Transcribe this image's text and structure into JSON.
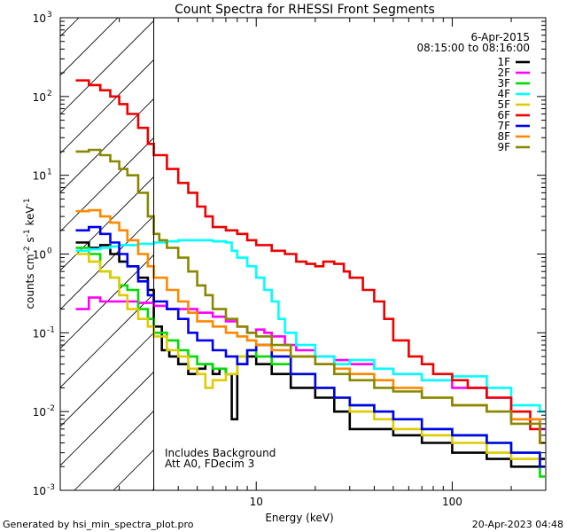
{
  "chart_data": {
    "type": "line",
    "title": "Count Spectra for RHESSI Front Segments",
    "xlabel": "Energy (keV)",
    "ylabel_parts": [
      "counts cm",
      "-2",
      " s",
      "-1",
      " keV",
      "-1"
    ],
    "xscale": "log",
    "yscale": "log",
    "xlim": [
      1,
      300
    ],
    "ylim": [
      0.001,
      1000
    ],
    "x_tick_labels": [
      {
        "value": 10,
        "label": "10"
      },
      {
        "value": 100,
        "label": "100"
      }
    ],
    "y_tick_labels": [
      {
        "value": 0.001,
        "base": "10",
        "exp": "-3"
      },
      {
        "value": 0.01,
        "base": "10",
        "exp": "-2"
      },
      {
        "value": 0.1,
        "base": "10",
        "exp": "-1"
      },
      {
        "value": 1,
        "base": "10",
        "exp": "0"
      },
      {
        "value": 10,
        "base": "10",
        "exp": "1"
      },
      {
        "value": 100,
        "base": "10",
        "exp": "2"
      },
      {
        "value": 1000,
        "base": "10",
        "exp": "3"
      }
    ],
    "shaded_region": {
      "x_min": 1,
      "x_max": 3,
      "pattern": "diagonal-hatch"
    },
    "date_label": "6-Apr-2015",
    "time_range_label": "08:15:00 to 08:16:00",
    "annotations": [
      "Includes Background",
      "Att A0, FDecim 3"
    ],
    "legend_position": "top-right",
    "series": [
      {
        "name": "1F",
        "color": "#000000",
        "points": [
          [
            1.2,
            1.4
          ],
          [
            1.4,
            1.2
          ],
          [
            1.6,
            1.3
          ],
          [
            1.8,
            1.0
          ],
          [
            2.0,
            0.8
          ],
          [
            2.2,
            0.7
          ],
          [
            2.5,
            0.5
          ],
          [
            2.8,
            0.35
          ],
          [
            3.0,
            0.12
          ],
          [
            3.3,
            0.06
          ],
          [
            3.6,
            0.05
          ],
          [
            4.0,
            0.04
          ],
          [
            4.5,
            0.03
          ],
          [
            5.0,
            0.035
          ],
          [
            5.5,
            0.04
          ],
          [
            6.0,
            0.03
          ],
          [
            6.5,
            0.035
          ],
          [
            7.0,
            0.03
          ],
          [
            7.5,
            0.008
          ],
          [
            8.0,
            0.04
          ],
          [
            9.0,
            0.05
          ],
          [
            10,
            0.04
          ],
          [
            12,
            0.03
          ],
          [
            15,
            0.02
          ],
          [
            20,
            0.015
          ],
          [
            25,
            0.01
          ],
          [
            30,
            0.006
          ],
          [
            40,
            0.006
          ],
          [
            50,
            0.005
          ],
          [
            70,
            0.004
          ],
          [
            100,
            0.003
          ],
          [
            150,
            0.0025
          ],
          [
            200,
            0.002
          ],
          [
            280,
            0.0025
          ]
        ]
      },
      {
        "name": "2F",
        "color": "#ff00ff",
        "points": [
          [
            1.2,
            0.2
          ],
          [
            1.4,
            0.28
          ],
          [
            1.6,
            0.25
          ],
          [
            2.0,
            0.25
          ],
          [
            2.5,
            0.24
          ],
          [
            3.0,
            0.22
          ],
          [
            3.5,
            0.2
          ],
          [
            4.0,
            0.2
          ],
          [
            5.0,
            0.18
          ],
          [
            6.0,
            0.16
          ],
          [
            7.0,
            0.14
          ],
          [
            8.0,
            0.12
          ],
          [
            9.0,
            0.1
          ],
          [
            10,
            0.11
          ],
          [
            11,
            0.1
          ],
          [
            12,
            0.09
          ],
          [
            14,
            0.07
          ],
          [
            16,
            0.06
          ],
          [
            20,
            0.05
          ],
          [
            25,
            0.045
          ],
          [
            30,
            0.04
          ],
          [
            40,
            0.035
          ],
          [
            50,
            0.03
          ],
          [
            70,
            0.025
          ],
          [
            100,
            0.02
          ],
          [
            150,
            0.015
          ],
          [
            200,
            0.008
          ],
          [
            280,
            0.006
          ]
        ]
      },
      {
        "name": "3F",
        "color": "#00dd00",
        "points": [
          [
            1.2,
            1.2
          ],
          [
            1.4,
            1.0
          ],
          [
            1.6,
            0.6
          ],
          [
            1.8,
            0.5
          ],
          [
            2.0,
            0.4
          ],
          [
            2.2,
            0.35
          ],
          [
            2.5,
            0.2
          ],
          [
            2.8,
            0.15
          ],
          [
            3.0,
            0.1
          ],
          [
            3.5,
            0.08
          ],
          [
            4.0,
            0.06
          ],
          [
            4.5,
            0.05
          ],
          [
            5.0,
            0.04
          ],
          [
            6.0,
            0.035
          ],
          [
            7.0,
            0.03
          ],
          [
            8.0,
            0.05
          ],
          [
            9.0,
            0.06
          ],
          [
            10,
            0.05
          ],
          [
            12,
            0.04
          ],
          [
            15,
            0.03
          ],
          [
            20,
            0.02
          ],
          [
            25,
            0.015
          ],
          [
            30,
            0.012
          ],
          [
            40,
            0.01
          ],
          [
            50,
            0.008
          ],
          [
            70,
            0.006
          ],
          [
            100,
            0.005
          ],
          [
            150,
            0.004
          ],
          [
            200,
            0.003
          ],
          [
            280,
            0.0015
          ]
        ]
      },
      {
        "name": "4F",
        "color": "#00ffff",
        "points": [
          [
            1.2,
            1.1
          ],
          [
            1.4,
            1.15
          ],
          [
            1.6,
            1.2
          ],
          [
            1.8,
            1.25
          ],
          [
            2.0,
            1.3
          ],
          [
            2.5,
            1.35
          ],
          [
            3.0,
            1.4
          ],
          [
            3.5,
            1.45
          ],
          [
            4.0,
            1.5
          ],
          [
            5.0,
            1.5
          ],
          [
            6.0,
            1.45
          ],
          [
            7.0,
            1.4
          ],
          [
            7.5,
            1.1
          ],
          [
            8.0,
            0.9
          ],
          [
            9.0,
            0.7
          ],
          [
            10,
            0.5
          ],
          [
            11,
            0.35
          ],
          [
            12,
            0.25
          ],
          [
            13,
            0.15
          ],
          [
            14,
            0.1
          ],
          [
            16,
            0.07
          ],
          [
            20,
            0.05
          ],
          [
            25,
            0.04
          ],
          [
            30,
            0.045
          ],
          [
            40,
            0.035
          ],
          [
            50,
            0.03
          ],
          [
            70,
            0.025
          ],
          [
            100,
            0.028
          ],
          [
            150,
            0.02
          ],
          [
            200,
            0.012
          ],
          [
            280,
            0.01
          ]
        ]
      },
      {
        "name": "5F",
        "color": "#ddcc00",
        "points": [
          [
            1.2,
            1.0
          ],
          [
            1.4,
            0.8
          ],
          [
            1.6,
            0.6
          ],
          [
            1.8,
            0.5
          ],
          [
            2.0,
            0.3
          ],
          [
            2.2,
            0.2
          ],
          [
            2.5,
            0.15
          ],
          [
            2.8,
            0.12
          ],
          [
            3.0,
            0.09
          ],
          [
            3.5,
            0.06
          ],
          [
            4.0,
            0.05
          ],
          [
            4.5,
            0.035
          ],
          [
            5.0,
            0.03
          ],
          [
            5.5,
            0.02
          ],
          [
            6.0,
            0.025
          ],
          [
            7.0,
            0.03
          ],
          [
            8.0,
            0.05
          ],
          [
            9.0,
            0.06
          ],
          [
            10,
            0.07
          ],
          [
            12,
            0.05
          ],
          [
            15,
            0.03
          ],
          [
            20,
            0.02
          ],
          [
            25,
            0.015
          ],
          [
            30,
            0.01
          ],
          [
            40,
            0.008
          ],
          [
            50,
            0.006
          ],
          [
            70,
            0.005
          ],
          [
            100,
            0.004
          ],
          [
            150,
            0.003
          ],
          [
            200,
            0.0025
          ],
          [
            280,
            0.002
          ]
        ]
      },
      {
        "name": "6F",
        "color": "#ee0000",
        "points": [
          [
            1.2,
            160
          ],
          [
            1.4,
            140
          ],
          [
            1.6,
            120
          ],
          [
            1.8,
            100
          ],
          [
            2.0,
            80
          ],
          [
            2.2,
            60
          ],
          [
            2.5,
            40
          ],
          [
            2.8,
            25
          ],
          [
            3.0,
            18
          ],
          [
            3.5,
            12
          ],
          [
            4.0,
            8
          ],
          [
            4.5,
            6
          ],
          [
            5.0,
            4
          ],
          [
            5.5,
            3
          ],
          [
            6.0,
            2.2
          ],
          [
            7.0,
            2.0
          ],
          [
            8.0,
            1.8
          ],
          [
            9.0,
            1.5
          ],
          [
            10,
            1.3
          ],
          [
            12,
            1.1
          ],
          [
            14,
            1.0
          ],
          [
            16,
            0.8
          ],
          [
            18,
            0.75
          ],
          [
            20,
            0.7
          ],
          [
            22,
            0.8
          ],
          [
            25,
            0.75
          ],
          [
            28,
            0.6
          ],
          [
            30,
            0.5
          ],
          [
            35,
            0.35
          ],
          [
            40,
            0.25
          ],
          [
            45,
            0.15
          ],
          [
            50,
            0.08
          ],
          [
            60,
            0.05
          ],
          [
            70,
            0.04
          ],
          [
            80,
            0.03
          ],
          [
            100,
            0.025
          ],
          [
            120,
            0.02
          ],
          [
            150,
            0.015
          ],
          [
            200,
            0.01
          ],
          [
            250,
            0.006
          ],
          [
            280,
            0.004
          ]
        ]
      },
      {
        "name": "7F",
        "color": "#0000ee",
        "points": [
          [
            1.2,
            2.0
          ],
          [
            1.4,
            2.2
          ],
          [
            1.6,
            1.8
          ],
          [
            1.8,
            1.4
          ],
          [
            2.0,
            1.0
          ],
          [
            2.2,
            0.7
          ],
          [
            2.5,
            0.45
          ],
          [
            2.8,
            0.3
          ],
          [
            3.0,
            0.25
          ],
          [
            3.5,
            0.2
          ],
          [
            4.0,
            0.15
          ],
          [
            4.5,
            0.1
          ],
          [
            5.0,
            0.08
          ],
          [
            6.0,
            0.06
          ],
          [
            7.0,
            0.05
          ],
          [
            8.0,
            0.04
          ],
          [
            9.0,
            0.06
          ],
          [
            10,
            0.07
          ],
          [
            12,
            0.05
          ],
          [
            15,
            0.03
          ],
          [
            20,
            0.02
          ],
          [
            25,
            0.015
          ],
          [
            30,
            0.012
          ],
          [
            40,
            0.01
          ],
          [
            50,
            0.008
          ],
          [
            70,
            0.006
          ],
          [
            100,
            0.005
          ],
          [
            150,
            0.004
          ],
          [
            200,
            0.003
          ],
          [
            280,
            0.002
          ]
        ]
      },
      {
        "name": "8F",
        "color": "#ff8800",
        "points": [
          [
            1.2,
            3.5
          ],
          [
            1.4,
            3.6
          ],
          [
            1.6,
            3.0
          ],
          [
            1.8,
            2.5
          ],
          [
            2.0,
            2.0
          ],
          [
            2.2,
            1.5
          ],
          [
            2.5,
            1.0
          ],
          [
            2.8,
            0.7
          ],
          [
            3.0,
            0.5
          ],
          [
            3.5,
            0.35
          ],
          [
            4.0,
            0.25
          ],
          [
            4.5,
            0.18
          ],
          [
            5.0,
            0.14
          ],
          [
            6.0,
            0.12
          ],
          [
            7.0,
            0.1
          ],
          [
            8.0,
            0.09
          ],
          [
            9.0,
            0.08
          ],
          [
            10,
            0.07
          ],
          [
            12,
            0.06
          ],
          [
            15,
            0.05
          ],
          [
            20,
            0.04
          ],
          [
            25,
            0.035
          ],
          [
            30,
            0.03
          ],
          [
            40,
            0.025
          ],
          [
            50,
            0.02
          ],
          [
            70,
            0.015
          ],
          [
            100,
            0.012
          ],
          [
            150,
            0.01
          ],
          [
            200,
            0.008
          ],
          [
            280,
            0.004
          ]
        ]
      },
      {
        "name": "9F",
        "color": "#888800",
        "points": [
          [
            1.2,
            20
          ],
          [
            1.4,
            21
          ],
          [
            1.6,
            18
          ],
          [
            1.8,
            15
          ],
          [
            2.0,
            12
          ],
          [
            2.2,
            10
          ],
          [
            2.5,
            6
          ],
          [
            2.8,
            3
          ],
          [
            3.0,
            1.8
          ],
          [
            3.2,
            1.5
          ],
          [
            3.5,
            1.2
          ],
          [
            4.0,
            0.9
          ],
          [
            4.5,
            0.6
          ],
          [
            5.0,
            0.4
          ],
          [
            5.5,
            0.3
          ],
          [
            6.0,
            0.2
          ],
          [
            7.0,
            0.15
          ],
          [
            8.0,
            0.12
          ],
          [
            9.0,
            0.1
          ],
          [
            10,
            0.09
          ],
          [
            12,
            0.07
          ],
          [
            15,
            0.05
          ],
          [
            20,
            0.04
          ],
          [
            25,
            0.03
          ],
          [
            30,
            0.025
          ],
          [
            40,
            0.02
          ],
          [
            50,
            0.018
          ],
          [
            70,
            0.015
          ],
          [
            100,
            0.012
          ],
          [
            150,
            0.01
          ],
          [
            200,
            0.007
          ],
          [
            280,
            0.004
          ]
        ]
      }
    ]
  },
  "footer": {
    "generated_by": "Generated by hsi_min_spectra_plot.pro",
    "timestamp": "20-Apr-2023 04:48"
  }
}
